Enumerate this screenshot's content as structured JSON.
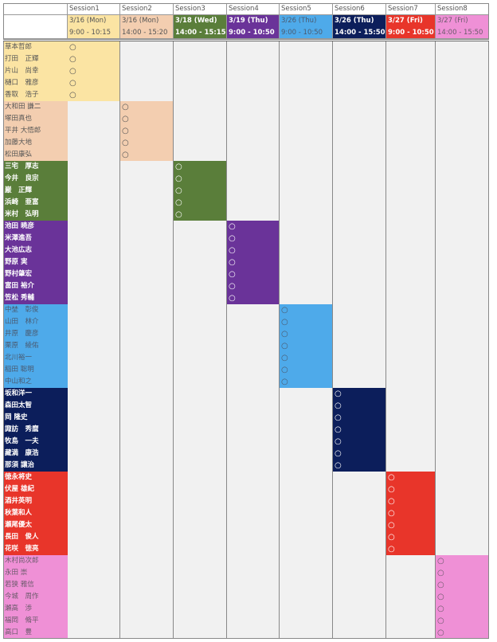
{
  "sessions": [
    {
      "label": "Session1",
      "date": "3/16 (Mon)",
      "time": "9:00 - 10:15",
      "color": "#fbe4a3",
      "text": "#555555",
      "bold": false,
      "members": [
        "草本哲郎",
        "打田　正輝",
        "片山　尚幸",
        "樋口　雅彦",
        "香取　浩子"
      ]
    },
    {
      "label": "Session2",
      "date": "3/16 (Mon)",
      "time": "14:00 - 15:20",
      "color": "#f3ceb0",
      "text": "#555555",
      "bold": false,
      "members": [
        "大和田 謙二",
        "塚田真也",
        "平井 大悟郎",
        "加藤大地",
        "松田康弘"
      ]
    },
    {
      "label": "Session3",
      "date": "3/18 (Wed)",
      "time": "14:00 - 15:15",
      "color": "#5a7e3a",
      "text": "#ffffff",
      "bold": true,
      "members": [
        "三宅　厚志",
        "今井　良宗",
        "巌　正輝",
        "浜崎　亜富",
        "米村　弘明"
      ]
    },
    {
      "label": "Session4",
      "date": "3/19 (Thu)",
      "time": "9:00 - 10:50",
      "color": "#6a3399",
      "text": "#ffffff",
      "bold": true,
      "members": [
        "池田 暁彦",
        "米澤進吾",
        "大池広志",
        "野原 実",
        "野村肇宏",
        "富田 裕介",
        "笠松 秀輔"
      ]
    },
    {
      "label": "Session5",
      "date": "3/26 (Thu)",
      "time": "9:00 - 10:50",
      "color": "#4eaaea",
      "text": "#4a5a70",
      "bold": false,
      "members": [
        "中埜　彰俊",
        "山田　林介",
        "井原　慶彦",
        "栗原　綾佑",
        "北川裕一",
        "稲田 聡明",
        "中山和之"
      ]
    },
    {
      "label": "Session6",
      "date": "3/26 (Thu)",
      "time": "14:00 - 15:50",
      "color": "#0c1e5b",
      "text": "#ffffff",
      "bold": true,
      "members": [
        "坂和洋一",
        "森田太智",
        "岡 隆史",
        "諏訪　秀麿",
        "牧島　一夫",
        "藏満　康浩",
        "那須 讓治"
      ]
    },
    {
      "label": "Session7",
      "date": "3/27 (Fri)",
      "time": "9:00 - 10:50",
      "color": "#e8352a",
      "text": "#ffffff",
      "bold": true,
      "members": [
        "徳永将史",
        "伏屋 雄紀",
        "酒井英明",
        "秋葉和人",
        "瀬尾優太",
        "長田　俊人",
        "花咲　徳亮"
      ]
    },
    {
      "label": "Session8",
      "date": "3/27 (Fri)",
      "time": "14:00 - 15:50",
      "color": "#ef90d6",
      "text": "#6a5a6a",
      "bold": false,
      "members": [
        "木村尚次郎",
        "永田 崇",
        "若狭 雅信",
        "今城　周作",
        "瀬高　渉",
        "福岡　脩平",
        "高口　豊"
      ]
    }
  ],
  "attend_mark": "○"
}
